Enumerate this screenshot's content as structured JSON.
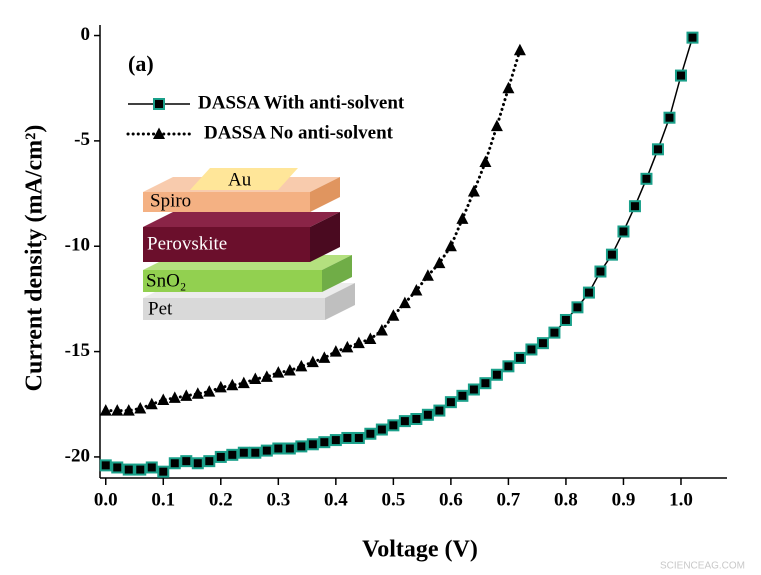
{
  "chart_data": {
    "type": "line",
    "panel_label": "(a)",
    "x_label": "Voltage (V)",
    "y_label": "Current density (mA/cm²)",
    "xlim": [
      -0.01,
      1.08
    ],
    "ylim": [
      -21,
      0.5
    ],
    "xticks": [
      {
        "value": 0,
        "label": "0.0"
      },
      0.1,
      0.2,
      0.3,
      0.4,
      0.5,
      0.6,
      0.7,
      0.8,
      0.9,
      {
        "value": 1,
        "label": "1.0"
      }
    ],
    "yticks": [
      0,
      -5,
      -10,
      -15,
      -20
    ],
    "legend": "upper left",
    "series": [
      {
        "name": "DASSA With anti-solvent",
        "color": "#000000",
        "marker": "square",
        "marker_edge": "#1aa08a",
        "line_style": "solid",
        "x": [
          0.0,
          0.02,
          0.04,
          0.06,
          0.08,
          0.1,
          0.12,
          0.14,
          0.16,
          0.18,
          0.2,
          0.22,
          0.24,
          0.26,
          0.28,
          0.3,
          0.32,
          0.34,
          0.36,
          0.38,
          0.4,
          0.42,
          0.44,
          0.46,
          0.48,
          0.5,
          0.52,
          0.54,
          0.56,
          0.58,
          0.6,
          0.62,
          0.64,
          0.66,
          0.68,
          0.7,
          0.72,
          0.74,
          0.76,
          0.78,
          0.8,
          0.82,
          0.84,
          0.86,
          0.88,
          0.9,
          0.92,
          0.94,
          0.96,
          0.98,
          1.0,
          1.02
        ],
        "values": [
          -20.4,
          -20.5,
          -20.6,
          -20.6,
          -20.5,
          -20.7,
          -20.3,
          -20.2,
          -20.3,
          -20.2,
          -20.0,
          -19.9,
          -19.8,
          -19.8,
          -19.7,
          -19.6,
          -19.6,
          -19.5,
          -19.4,
          -19.3,
          -19.2,
          -19.1,
          -19.1,
          -18.9,
          -18.7,
          -18.5,
          -18.3,
          -18.2,
          -18.0,
          -17.8,
          -17.4,
          -17.1,
          -16.8,
          -16.5,
          -16.1,
          -15.7,
          -15.3,
          -14.9,
          -14.6,
          -14.1,
          -13.5,
          -12.9,
          -12.2,
          -11.2,
          -10.4,
          -9.3,
          -8.1,
          -6.8,
          -5.4,
          -3.9,
          -1.9,
          -0.1
        ]
      },
      {
        "name": "DASSA No anti-solvent",
        "color": "#000000",
        "marker": "triangle",
        "line_style": "dotted",
        "x": [
          0.0,
          0.02,
          0.04,
          0.06,
          0.08,
          0.1,
          0.12,
          0.14,
          0.16,
          0.18,
          0.2,
          0.22,
          0.24,
          0.26,
          0.28,
          0.3,
          0.32,
          0.34,
          0.36,
          0.38,
          0.4,
          0.42,
          0.44,
          0.46,
          0.48,
          0.5,
          0.52,
          0.54,
          0.56,
          0.58,
          0.6,
          0.62,
          0.64,
          0.66,
          0.68,
          0.7,
          0.72
        ],
        "values": [
          -17.8,
          -17.8,
          -17.8,
          -17.7,
          -17.5,
          -17.3,
          -17.2,
          -17.1,
          -17.0,
          -16.9,
          -16.7,
          -16.6,
          -16.5,
          -16.3,
          -16.2,
          -16.0,
          -15.9,
          -15.7,
          -15.5,
          -15.3,
          -15.0,
          -14.8,
          -14.6,
          -14.4,
          -14.0,
          -13.3,
          -12.7,
          -12.1,
          -11.4,
          -10.8,
          -10.0,
          -8.7,
          -7.4,
          -6.0,
          -4.3,
          -2.5,
          -0.7
        ]
      }
    ]
  },
  "inset": {
    "layers": [
      "Au",
      "Spiro",
      "Perovskite",
      "SnO₂",
      "Pet"
    ]
  },
  "watermark": "SCIENCEAG.COM"
}
